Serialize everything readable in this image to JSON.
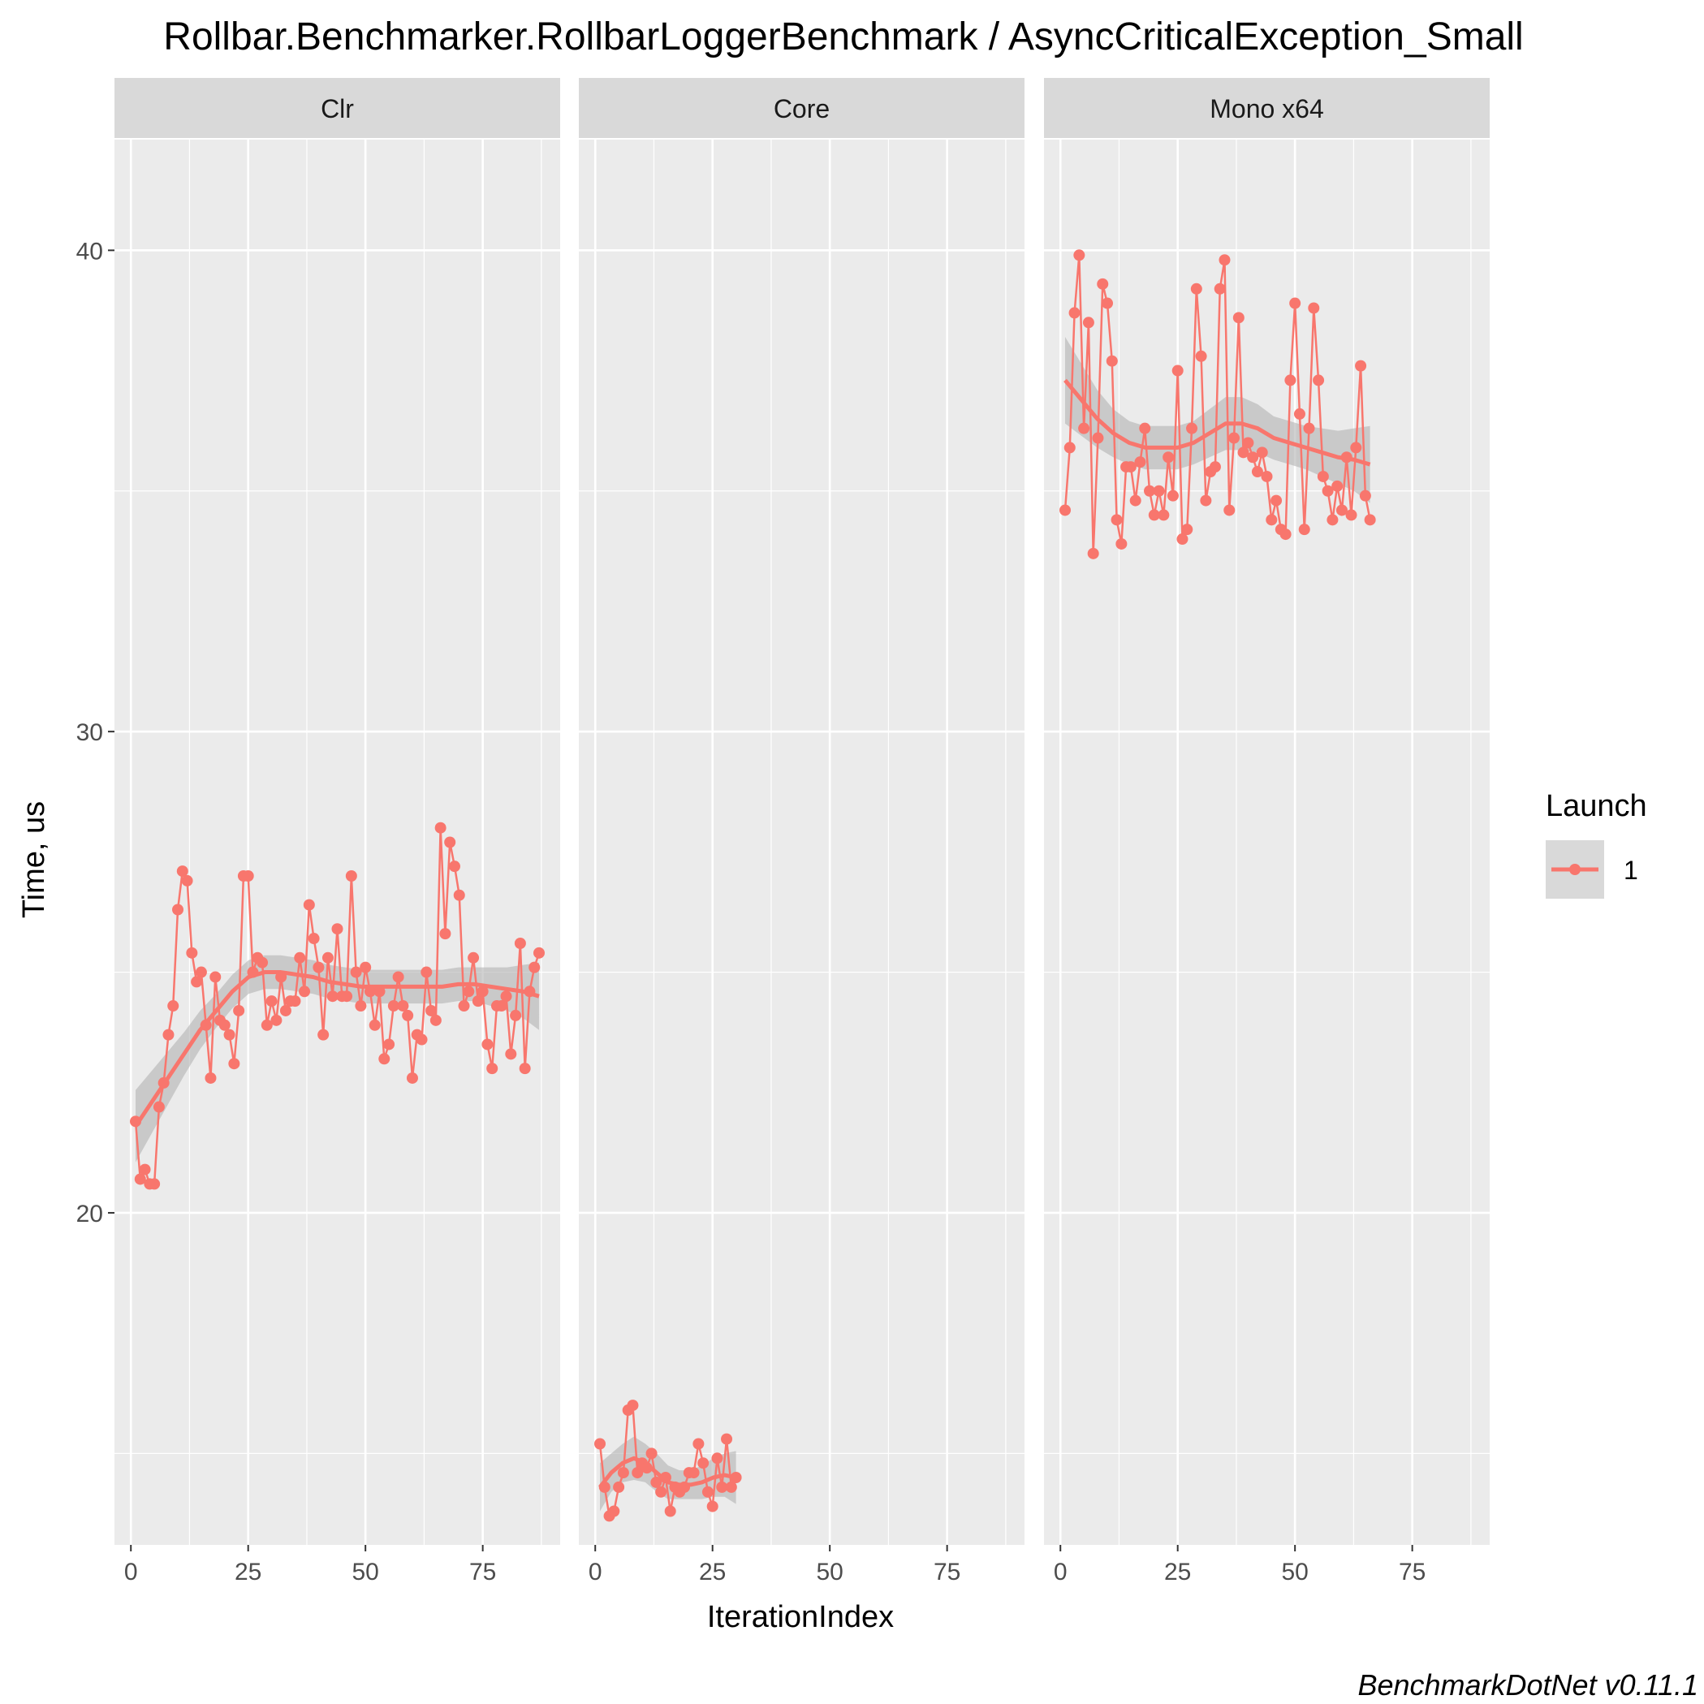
{
  "chart_data": {
    "type": "line",
    "title": "Rollbar.Benchmarker.RollbarLoggerBenchmark / AsyncCriticalException_Small",
    "xlabel": "IterationIndex",
    "ylabel": "Time, us",
    "caption": "BenchmarkDotNet v0.11.1",
    "xlim": [
      -3.5,
      91.5
    ],
    "ylim": [
      13.1,
      42.3
    ],
    "x_ticks": [
      0,
      25,
      50,
      75
    ],
    "y_ticks": [
      20,
      30,
      40
    ],
    "legend": {
      "title": "Launch",
      "entries": [
        "1"
      ],
      "placement": "right"
    },
    "colors": {
      "series": "#f8766d",
      "panel_bg": "#ebebeb",
      "strip_bg": "#d9d9d9",
      "band": "#b3b3b3",
      "grid": "#ffffff"
    },
    "panels": [
      {
        "name": "Clr",
        "series": [
          {
            "name": "1",
            "values": [
              21.9,
              20.7,
              20.9,
              20.6,
              20.6,
              22.2,
              22.7,
              23.7,
              24.3,
              26.3,
              27.1,
              26.9,
              25.4,
              24.8,
              25.0,
              23.9,
              22.8,
              24.9,
              24.0,
              23.9,
              23.7,
              23.1,
              24.2,
              27.0,
              27.0,
              25.0,
              25.3,
              25.2,
              23.9,
              24.4,
              24.0,
              24.9,
              24.2,
              24.4,
              24.4,
              25.3,
              24.6,
              26.4,
              25.7,
              25.1,
              23.7,
              25.3,
              24.5,
              25.9,
              24.5,
              24.5,
              27.0,
              25.0,
              24.3,
              25.1,
              24.6,
              23.9,
              24.6,
              23.2,
              23.5,
              24.3,
              24.9,
              24.3,
              24.1,
              22.8,
              23.7,
              23.6,
              25.0,
              24.2,
              24.0,
              28.0,
              25.8,
              27.7,
              27.2,
              26.6,
              24.3,
              24.6,
              25.3,
              24.4,
              24.6,
              23.5,
              23.0,
              24.3,
              24.3,
              24.5,
              23.3,
              24.1,
              25.6,
              23.0,
              24.6,
              25.1,
              25.4
            ],
            "smooth": [
              21.8,
              22.3,
              22.8,
              23.3,
              23.8,
              24.2,
              24.6,
              24.9,
              25.0,
              25.0,
              24.95,
              24.9,
              24.8,
              24.75,
              24.7,
              24.7,
              24.7,
              24.7,
              24.7,
              24.7,
              24.75,
              24.75,
              24.7,
              24.65,
              24.6,
              24.5
            ],
            "band_half_width": [
              0.75,
              0.65,
              0.55,
              0.45,
              0.4,
              0.35,
              0.35,
              0.35,
              0.35,
              0.35,
              0.35,
              0.35,
              0.35,
              0.35,
              0.35,
              0.35,
              0.35,
              0.35,
              0.35,
              0.35,
              0.35,
              0.35,
              0.4,
              0.45,
              0.55,
              0.7
            ]
          }
        ]
      },
      {
        "name": "Core",
        "series": [
          {
            "name": "1",
            "values": [
              15.2,
              14.3,
              13.7,
              13.8,
              14.3,
              14.6,
              15.9,
              16.0,
              14.6,
              14.8,
              14.7,
              15.0,
              14.4,
              14.2,
              14.5,
              13.8,
              14.3,
              14.2,
              14.3,
              14.6,
              14.6,
              15.2,
              14.8,
              14.2,
              13.9,
              14.9,
              14.3,
              15.3,
              14.3,
              14.5
            ],
            "smooth": [
              14.3,
              14.6,
              14.8,
              14.9,
              14.8,
              14.6,
              14.4,
              14.35,
              14.35,
              14.4,
              14.5,
              14.55,
              14.5
            ],
            "band_half_width": [
              0.5,
              0.4,
              0.4,
              0.45,
              0.4,
              0.4,
              0.35,
              0.3,
              0.3,
              0.35,
              0.4,
              0.45,
              0.55
            ]
          }
        ]
      },
      {
        "name": "Mono x64",
        "series": [
          {
            "name": "1",
            "values": [
              34.6,
              35.9,
              38.7,
              39.9,
              36.3,
              38.5,
              33.7,
              36.1,
              39.3,
              38.9,
              37.7,
              34.4,
              33.9,
              35.5,
              35.5,
              34.8,
              35.6,
              36.3,
              35.0,
              34.5,
              35.0,
              34.5,
              35.7,
              34.9,
              37.5,
              34.0,
              34.2,
              36.3,
              39.2,
              37.8,
              34.8,
              35.4,
              35.5,
              39.2,
              39.8,
              34.6,
              36.1,
              38.6,
              35.8,
              36.0,
              35.7,
              35.4,
              35.8,
              35.3,
              34.4,
              34.8,
              34.2,
              34.1,
              37.3,
              38.9,
              36.6,
              34.2,
              36.3,
              38.8,
              37.3,
              35.3,
              35.0,
              34.4,
              35.1,
              34.6,
              35.7,
              34.5,
              35.9,
              37.6,
              34.9,
              34.4
            ],
            "smooth": [
              37.3,
              36.9,
              36.5,
              36.2,
              36.0,
              35.9,
              35.9,
              35.9,
              36.0,
              36.2,
              36.4,
              36.4,
              36.3,
              36.1,
              36.0,
              35.9,
              35.8,
              35.7,
              35.65,
              35.55
            ],
            "band_half_width": [
              0.9,
              0.75,
              0.6,
              0.5,
              0.45,
              0.45,
              0.45,
              0.45,
              0.45,
              0.5,
              0.55,
              0.55,
              0.5,
              0.45,
              0.45,
              0.45,
              0.5,
              0.55,
              0.65,
              0.8
            ]
          }
        ]
      }
    ]
  }
}
